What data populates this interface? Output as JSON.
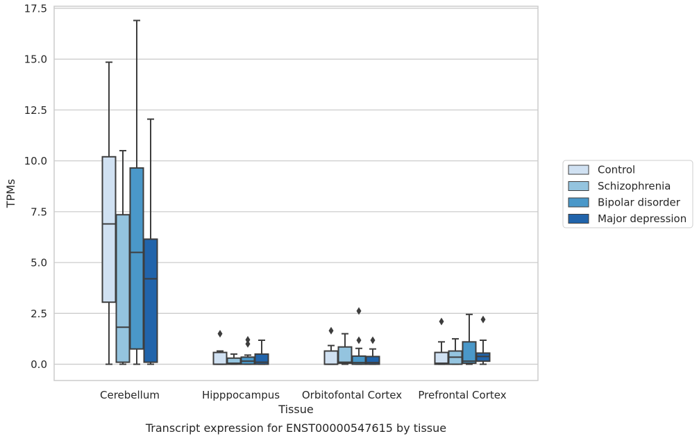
{
  "chart_data": {
    "type": "box",
    "title": "Transcript expression for ENST00000547615 by tissue",
    "xlabel": "Tissue",
    "ylabel": "TPMs",
    "ylim": [
      -0.8,
      17.6
    ],
    "yticks": [
      "0.0",
      "2.5",
      "5.0",
      "7.5",
      "10.0",
      "12.5",
      "15.0",
      "17.5"
    ],
    "ytick_values": [
      0,
      2.5,
      5,
      7.5,
      10,
      12.5,
      15,
      17.5
    ],
    "grid": "horizontal",
    "legend_position": "right",
    "categories": [
      "Cerebellum",
      "Hipppocampus",
      "Orbitofontal Cortex",
      "Prefrontal Cortex"
    ],
    "series": [
      {
        "name": "Control",
        "color": "#d0e1f2",
        "boxes": [
          {
            "min": 0.0,
            "q1": 3.05,
            "median": 6.9,
            "q3": 10.2,
            "max": 14.85,
            "outliers": []
          },
          {
            "min": 0.0,
            "q1": 0.0,
            "median": 0.0,
            "q3": 0.58,
            "max": 0.65,
            "outliers": [
              1.5
            ]
          },
          {
            "min": 0.0,
            "q1": 0.0,
            "median": 0.0,
            "q3": 0.65,
            "max": 0.92,
            "outliers": [
              1.65
            ]
          },
          {
            "min": 0.0,
            "q1": 0.0,
            "median": 0.05,
            "q3": 0.58,
            "max": 1.1,
            "outliers": [
              2.1
            ]
          }
        ]
      },
      {
        "name": "Schizophrenia",
        "color": "#94c4df",
        "boxes": [
          {
            "min": 0.0,
            "q1": 0.1,
            "median": 1.82,
            "q3": 7.35,
            "max": 10.5,
            "outliers": []
          },
          {
            "min": 0.0,
            "q1": 0.0,
            "median": 0.05,
            "q3": 0.3,
            "max": 0.5,
            "outliers": []
          },
          {
            "min": 0.0,
            "q1": 0.05,
            "median": 0.1,
            "q3": 0.85,
            "max": 1.5,
            "outliers": []
          },
          {
            "min": 0.0,
            "q1": 0.0,
            "median": 0.35,
            "q3": 0.65,
            "max": 1.25,
            "outliers": []
          }
        ]
      },
      {
        "name": "Bipolar disorder",
        "color": "#4a98c9",
        "boxes": [
          {
            "min": 0.0,
            "q1": 0.75,
            "median": 5.5,
            "q3": 9.65,
            "max": 16.9,
            "outliers": []
          },
          {
            "min": 0.0,
            "q1": 0.0,
            "median": 0.15,
            "q3": 0.35,
            "max": 0.45,
            "outliers": [
              1.0,
              1.2
            ]
          },
          {
            "min": 0.0,
            "q1": 0.0,
            "median": 0.08,
            "q3": 0.4,
            "max": 0.78,
            "outliers": [
              1.18,
              2.62
            ]
          },
          {
            "min": 0.0,
            "q1": 0.05,
            "median": 0.15,
            "q3": 1.1,
            "max": 2.45,
            "outliers": []
          }
        ]
      },
      {
        "name": "Major depression",
        "color": "#2164ab",
        "boxes": [
          {
            "min": 0.0,
            "q1": 0.1,
            "median": 4.2,
            "q3": 6.15,
            "max": 12.05,
            "outliers": []
          },
          {
            "min": 0.0,
            "q1": 0.0,
            "median": 0.1,
            "q3": 0.5,
            "max": 1.18,
            "outliers": []
          },
          {
            "min": 0.0,
            "q1": 0.0,
            "median": 0.08,
            "q3": 0.38,
            "max": 0.75,
            "outliers": [
              1.18
            ]
          },
          {
            "min": 0.0,
            "q1": 0.15,
            "median": 0.38,
            "q3": 0.55,
            "max": 1.18,
            "outliers": [
              2.2
            ]
          }
        ]
      }
    ]
  }
}
